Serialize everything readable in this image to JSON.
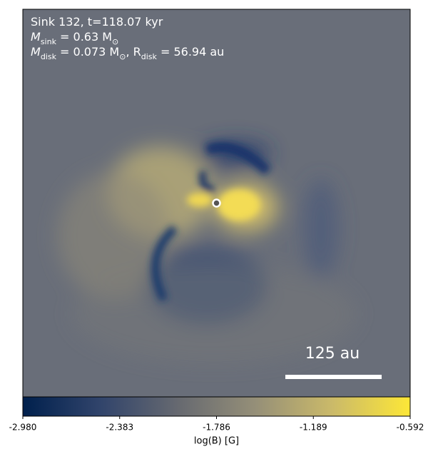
{
  "chart_data": {
    "type": "image",
    "annotations": [
      [
        "Sink 132, t=118.07 kyr"
      ],
      [
        "M",
        "sink",
        " = 0.63 M",
        "⊙"
      ],
      [
        "M",
        "disk",
        " = 0.073 M",
        "⊙",
        ", R",
        "disk",
        " = 56.94 au"
      ]
    ],
    "scale_bar_label": "125 au",
    "colorbar": {
      "label": "log(B) [G]",
      "clim": [
        -2.98,
        -0.592
      ],
      "ticks": [
        {
          "value": -2.98,
          "label": "-2.980"
        },
        -2.383,
        -1.786,
        -1.189,
        {
          "value": -0.592,
          "label": "-0.592"
        }
      ],
      "colors": [
        "#00204d",
        "#31446b",
        "#666970",
        "#958f78",
        "#cbba69",
        "#fde737"
      ]
    }
  }
}
